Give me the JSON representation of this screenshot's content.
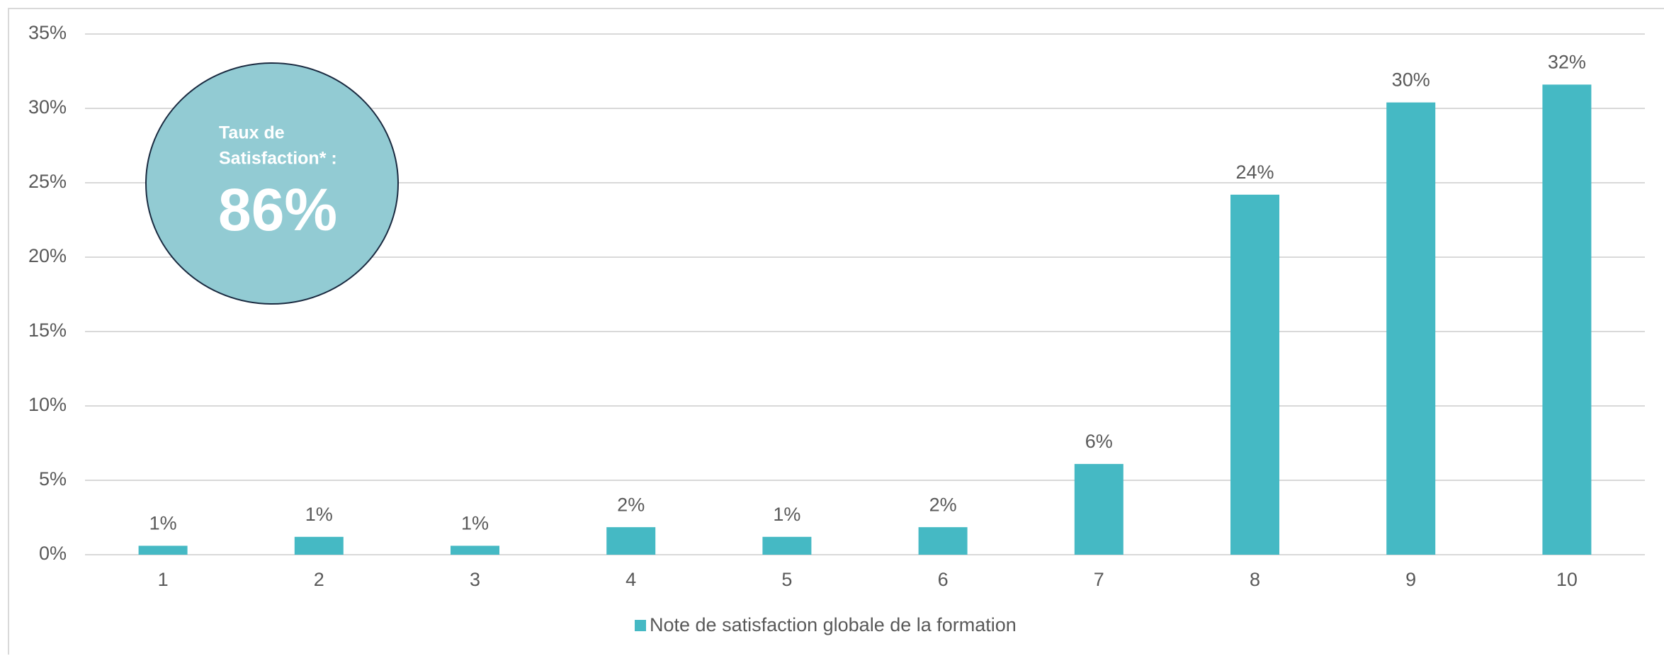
{
  "chart_data": {
    "type": "bar",
    "categories": [
      "1",
      "2",
      "3",
      "4",
      "5",
      "6",
      "7",
      "8",
      "9",
      "10"
    ],
    "series": [
      {
        "name": "Note de satisfaction globale de la formation",
        "color": "#45b9c4",
        "values": [
          0.6,
          1.2,
          0.6,
          1.85,
          1.2,
          1.85,
          6.1,
          24.2,
          30.4,
          31.6
        ],
        "value_labels": [
          "1%",
          "1%",
          "1%",
          "2%",
          "1%",
          "2%",
          "6%",
          "24%",
          "30%",
          "32%"
        ]
      }
    ],
    "ylim": [
      0,
      35
    ],
    "yticks": [
      {
        "value": 0,
        "label": "0%"
      },
      {
        "value": 5,
        "label": "5%"
      },
      {
        "value": 10,
        "label": "10%"
      },
      {
        "value": 15,
        "label": "15%"
      },
      {
        "value": 20,
        "label": "20%"
      },
      {
        "value": 25,
        "label": "25%"
      },
      {
        "value": 30,
        "label": "30%"
      },
      {
        "value": 35,
        "label": "35%"
      }
    ],
    "grid": true,
    "legend": "bottom",
    "annotation": {
      "lines": [
        "Taux de",
        "Satisfaction* :"
      ],
      "highlight": "86%"
    }
  }
}
